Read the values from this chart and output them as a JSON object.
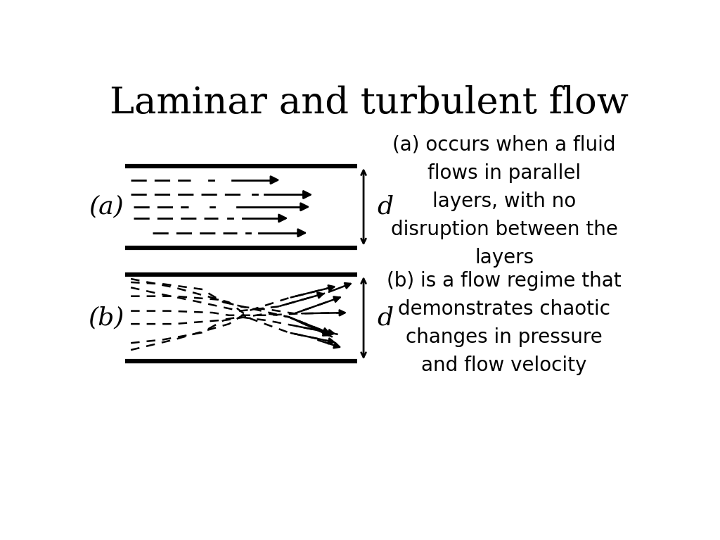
{
  "title": "Laminar and turbulent flow",
  "title_fontsize": 38,
  "background_color": "#ffffff",
  "label_a": "(a)",
  "label_b": "(b)",
  "label_d": "d",
  "text_a": "(a) occurs when a fluid\nflows in parallel\nlayers, with no\ndisruption between the\nlayers",
  "text_b": "(b) is a flow regime that\ndemonstrates chaotic\nchanges in pressure\nand flow velocity",
  "text_fontsize": 20,
  "diagram_color": "#000000",
  "fig_width": 10.24,
  "fig_height": 7.67
}
